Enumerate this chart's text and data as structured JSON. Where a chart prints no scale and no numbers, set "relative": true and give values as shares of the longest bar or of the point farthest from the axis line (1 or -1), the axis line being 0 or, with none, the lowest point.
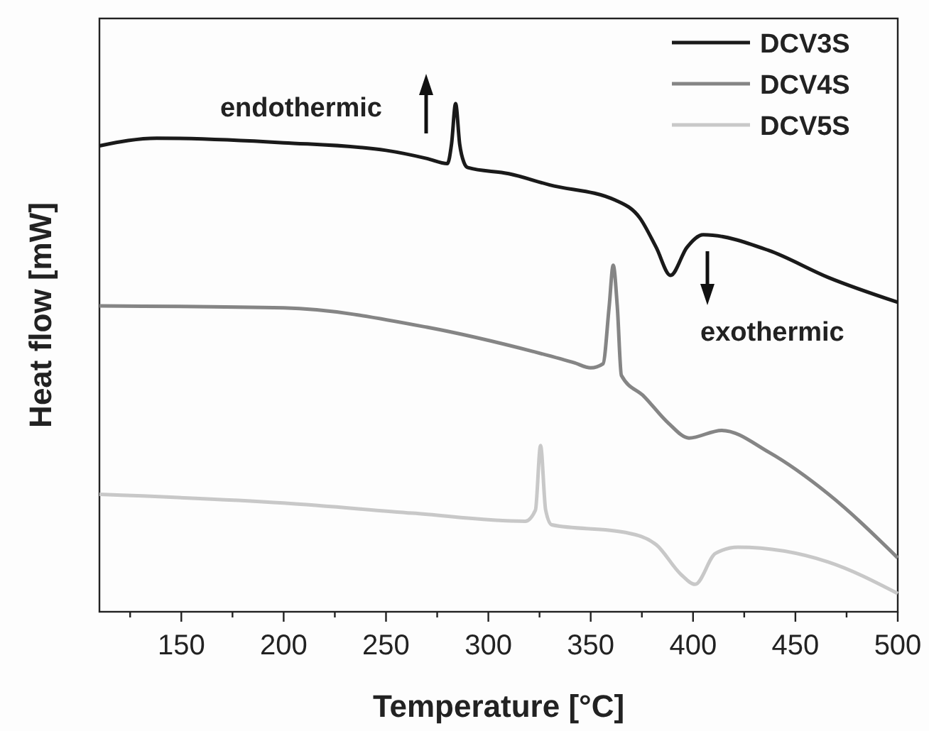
{
  "chart_data": {
    "type": "line",
    "xlabel": "Temperature [°C]",
    "ylabel": "Heat flow [mW]",
    "relative": true,
    "xlim": [
      110,
      500
    ],
    "xticks": [
      {
        "value": 125,
        "label": null
      },
      150,
      {
        "value": 175,
        "label": null
      },
      200,
      {
        "value": 225,
        "label": null
      },
      250,
      {
        "value": 275,
        "label": null
      },
      300,
      {
        "value": 325,
        "label": null
      },
      350,
      {
        "value": 375,
        "label": null
      },
      400,
      {
        "value": 425,
        "label": null
      },
      450,
      {
        "value": 475,
        "label": null
      },
      500
    ],
    "legend": "top right",
    "grid": false,
    "marker": "none",
    "line_style": "solid",
    "annotations": [
      "endothermic",
      "exothermic"
    ],
    "series": [
      {
        "name": "DCV3S",
        "color": "#1a1a1a",
        "x": [
          110,
          138,
          200,
          250,
          270,
          280,
          282,
          284,
          286,
          288,
          290,
          310,
          330,
          362,
          374,
          382,
          389,
          397,
          405,
          437,
          466,
          500
        ],
        "values": [
          0.917,
          0.932,
          0.923,
          0.908,
          0.892,
          0.882,
          0.92,
          1.0,
          0.92,
          0.885,
          0.874,
          0.862,
          0.84,
          0.81,
          0.775,
          0.717,
          0.662,
          0.717,
          0.742,
          0.711,
          0.658,
          0.609
        ]
      },
      {
        "name": "DCV4S",
        "color": "#858585",
        "x": [
          110,
          200,
          270,
          322,
          342,
          350,
          356,
          359,
          361,
          363,
          365,
          376,
          388,
          398,
          414,
          437,
          466,
          500
        ],
        "values": [
          0.602,
          0.598,
          0.56,
          0.512,
          0.49,
          0.48,
          0.488,
          0.6,
          0.682,
          0.6,
          0.465,
          0.424,
          0.371,
          0.342,
          0.357,
          0.314,
          0.232,
          0.106
        ]
      },
      {
        "name": "DCV5S",
        "color": "#c8c8c8",
        "x": [
          110,
          200,
          263,
          318,
          323,
          325.5,
          328,
          331,
          367,
          382,
          394,
          401,
          411,
          422,
          466,
          500
        ],
        "values": [
          0.231,
          0.214,
          0.194,
          0.178,
          0.2,
          0.327,
          0.2,
          0.171,
          0.156,
          0.132,
          0.074,
          0.054,
          0.115,
          0.127,
          0.098,
          0.036
        ]
      }
    ]
  }
}
